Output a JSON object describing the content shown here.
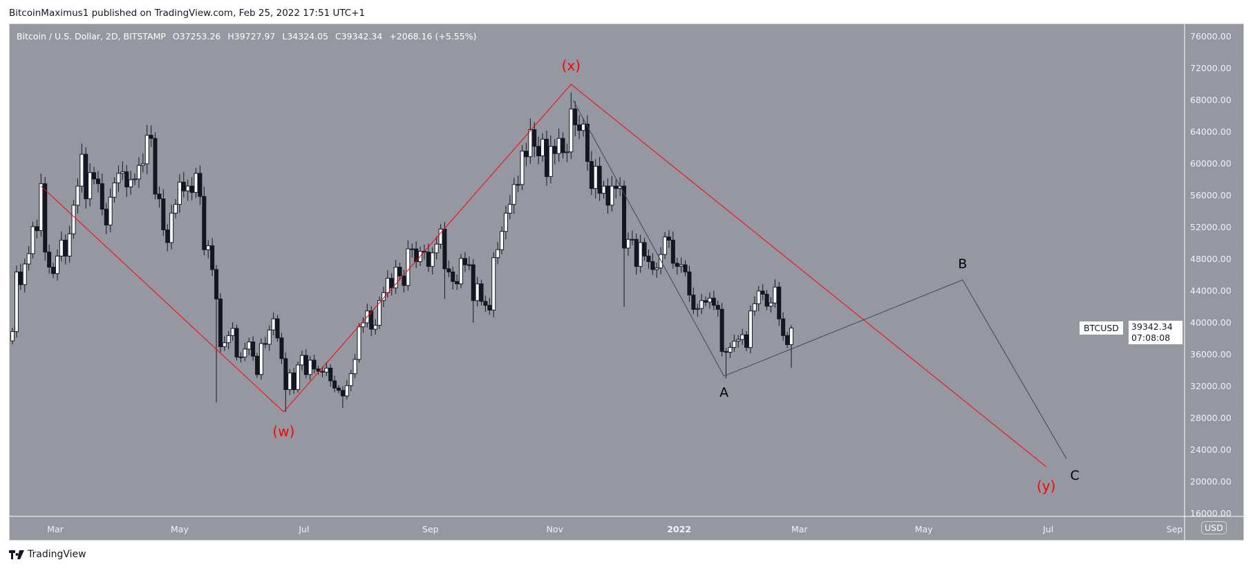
{
  "publish_line": "BitcoinMaximus1 published on TradingView.com, Feb 25, 2022 17:51 UTC+1",
  "legend": {
    "symbol": "Bitcoin / U.S. Dollar, 2D, BITSTAMP",
    "open": "O37253.26",
    "high": "H39727.97",
    "low": "L34324.05",
    "close": "C39342.34",
    "change": "+2068.16 (+5.55%)"
  },
  "price_axis": {
    "currency_badge": "USD",
    "ticks": [
      "76000.00",
      "72000.00",
      "68000.00",
      "64000.00",
      "60000.00",
      "56000.00",
      "52000.00",
      "48000.00",
      "44000.00",
      "40000.00",
      "36000.00",
      "32000.00",
      "28000.00",
      "24000.00",
      "20000.00",
      "16000.00"
    ],
    "last_price_symbol": "BTCUSD",
    "last_price": "39342.34",
    "countdown": "07:08:08"
  },
  "time_axis": {
    "labels": [
      {
        "text": "Mar",
        "date": "2021-03-01",
        "bold": false
      },
      {
        "text": "May",
        "date": "2021-05-01",
        "bold": false
      },
      {
        "text": "Jul",
        "date": "2021-07-01",
        "bold": false
      },
      {
        "text": "Sep",
        "date": "2021-09-01",
        "bold": false
      },
      {
        "text": "Nov",
        "date": "2021-11-01",
        "bold": false
      },
      {
        "text": "2022",
        "date": "2022-01-01",
        "bold": true
      },
      {
        "text": "Mar",
        "date": "2022-03-01",
        "bold": false
      },
      {
        "text": "May",
        "date": "2022-05-01",
        "bold": false
      },
      {
        "text": "Jul",
        "date": "2022-07-01",
        "bold": false
      },
      {
        "text": "Sep",
        "date": "2022-09-01",
        "bold": false
      }
    ]
  },
  "chart_data": {
    "type": "candlestick",
    "symbol": "BTCUSD",
    "interval": "2D",
    "first_candle_date": "2021-02-07",
    "ylim": [
      16000,
      76000
    ],
    "xlim": [
      "2021-02-06",
      "2022-09-10"
    ],
    "grid": false,
    "closes": [
      38900,
      46400,
      44800,
      47400,
      48700,
      52100,
      51600,
      57500,
      48900,
      47000,
      46200,
      48400,
      50400,
      48400,
      51200,
      54800,
      57200,
      61200,
      55600,
      58900,
      58100,
      57500,
      54300,
      52300,
      55800,
      57600,
      58800,
      59000,
      57100,
      58000,
      58100,
      59800,
      60000,
      63600,
      63200,
      56200,
      55600,
      51700,
      50100,
      53800,
      54900,
      57700,
      56600,
      57200,
      56400,
      58800,
      55900,
      49200,
      49700,
      46700,
      43000,
      37000,
      37500,
      38400,
      39300,
      35700,
      35700,
      36700,
      37600,
      35800,
      33500,
      37400,
      37300,
      39100,
      40500,
      38100,
      35500,
      31600,
      33700,
      31600,
      34700,
      35900,
      33500,
      35300,
      34200,
      33900,
      33800,
      34300,
      32700,
      31800,
      31500,
      30800,
      32100,
      33600,
      35400,
      39500,
      40000,
      41500,
      39200,
      39700,
      42800,
      43800,
      45600,
      44400,
      47000,
      45900,
      44700,
      49300,
      49300,
      47700,
      49000,
      48900,
      47100,
      48800,
      49900,
      51800,
      46800,
      46400,
      45200,
      44900,
      48100,
      47300,
      47300,
      42800,
      44900,
      42700,
      42200,
      41600,
      48200,
      49200,
      51500,
      53800,
      54900,
      57400,
      57400,
      61600,
      60900,
      64300,
      62200,
      61000,
      63100,
      58400,
      62200,
      61300,
      63200,
      61400,
      61500,
      66900,
      64900,
      64200,
      65000,
      60300,
      56900,
      59700,
      56300,
      57200,
      54800,
      57200,
      56900,
      57200,
      49400,
      50500,
      50500,
      47100,
      50100,
      48400,
      47700,
      46700,
      46900,
      48600,
      50800,
      50400,
      47500,
      47100,
      47300,
      46400,
      43500,
      41700,
      41800,
      42800,
      42600,
      43100,
      42200,
      41700,
      36400,
      36300,
      36900,
      37700,
      37900,
      38500,
      36900,
      41500,
      42400,
      44000,
      43600,
      42100,
      42500,
      44500,
      40500,
      38400,
      37253.26,
      39342.34
    ],
    "wicks": [
      {
        "date": "2021-04-14",
        "high": 64900
      },
      {
        "date": "2021-05-18",
        "low": 30000
      },
      {
        "date": "2021-06-21",
        "low": 28800
      },
      {
        "date": "2021-07-19",
        "low": 29300
      },
      {
        "date": "2021-09-07",
        "low": 43000
      },
      {
        "date": "2021-09-21",
        "low": 40000
      },
      {
        "date": "2021-11-08",
        "high": 69000
      },
      {
        "date": "2021-12-04",
        "low": 42000
      },
      {
        "date": "2022-01-23",
        "low": 33000
      },
      {
        "date": "2022-02-24",
        "high": 39727.97,
        "low": 34324.05
      }
    ],
    "annotations": {
      "red_wave": {
        "color": "#ff0000",
        "points": [
          {
            "date": "2021-02-22",
            "price": 57200
          },
          {
            "date": "2021-06-21",
            "price": 28800,
            "label": "(w)"
          },
          {
            "date": "2021-11-09",
            "price": 70000,
            "label": "(x)"
          },
          {
            "date": "2022-06-30",
            "price": 21900,
            "label": "(y)"
          }
        ]
      },
      "black_wave": {
        "color": "#434651",
        "points": [
          {
            "date": "2021-11-10",
            "price": 68000
          },
          {
            "date": "2022-01-23",
            "price": 33300,
            "label": "A"
          },
          {
            "date": "2022-05-20",
            "price": 45400,
            "label": "B"
          },
          {
            "date": "2022-07-10",
            "price": 22870,
            "label": "C"
          }
        ]
      }
    }
  },
  "colors": {
    "background": "#9598a1",
    "up_candle": "#ffffff",
    "down_candle": "#131722",
    "wave_red": "#ff0000",
    "wave_black": "#434651"
  },
  "footer": {
    "brand": "TradingView"
  }
}
